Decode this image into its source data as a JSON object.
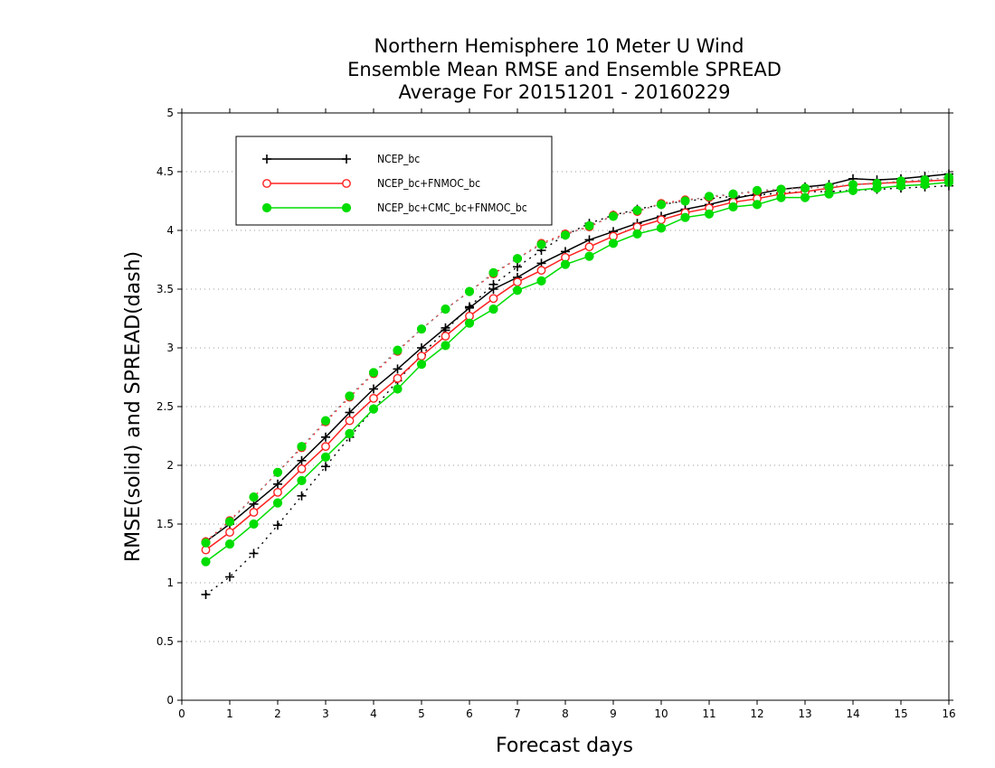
{
  "chart_data": {
    "type": "line",
    "title": [
      "Northern Hemisphere 10 Meter U Wind",
      "Ensemble Mean RMSE and Ensemble SPREAD",
      "Average For 20151201 - 20160229"
    ],
    "xlabel": "Forecast days",
    "ylabel": "RMSE(solid) and SPREAD(dash)",
    "xlim": [
      0,
      16
    ],
    "ylim": [
      0,
      5
    ],
    "xticks": [
      0,
      1,
      2,
      3,
      4,
      5,
      6,
      7,
      8,
      9,
      10,
      11,
      12,
      13,
      14,
      15,
      16
    ],
    "yticks": [
      0,
      0.5,
      1,
      1.5,
      2,
      2.5,
      3,
      3.5,
      4,
      4.5,
      5
    ],
    "grid": "horizontal-dotted",
    "legend_position": "top-left",
    "x": [
      0.5,
      1,
      1.5,
      2,
      2.5,
      3,
      3.5,
      4,
      4.5,
      5,
      5.5,
      6,
      6.5,
      7,
      7.5,
      8,
      8.5,
      9,
      9.5,
      10,
      10.5,
      11,
      11.5,
      12,
      12.5,
      13,
      13.5,
      14,
      14.5,
      15,
      15.5,
      16
    ],
    "series": [
      {
        "name": "NCEP_bc",
        "color": "#000000",
        "marker": "plus",
        "rmse": [
          1.35,
          1.5,
          1.67,
          1.84,
          2.04,
          2.24,
          2.45,
          2.65,
          2.82,
          3.0,
          3.17,
          3.34,
          3.5,
          3.6,
          3.72,
          3.82,
          3.92,
          3.99,
          4.06,
          4.12,
          4.18,
          4.22,
          4.27,
          4.31,
          4.35,
          4.37,
          4.39,
          4.44,
          4.43,
          4.44,
          4.46,
          4.48
        ],
        "spread": [
          0.9,
          1.05,
          1.25,
          1.49,
          1.74,
          1.99,
          2.24,
          2.48,
          2.72,
          2.94,
          3.15,
          3.35,
          3.54,
          3.69,
          3.83,
          3.96,
          4.06,
          4.13,
          4.18,
          4.22,
          4.25,
          4.27,
          4.29,
          4.3,
          4.32,
          4.33,
          4.33,
          4.34,
          4.35,
          4.36,
          4.37,
          4.38
        ]
      },
      {
        "name": "NCEP_bc+FNMOC_bc",
        "color": "#ff2020",
        "marker": "open-circle",
        "rmse": [
          1.28,
          1.43,
          1.6,
          1.77,
          1.97,
          2.16,
          2.38,
          2.57,
          2.74,
          2.93,
          3.1,
          3.27,
          3.42,
          3.56,
          3.66,
          3.77,
          3.86,
          3.95,
          4.03,
          4.09,
          4.15,
          4.19,
          4.24,
          4.27,
          4.31,
          4.33,
          4.36,
          4.39,
          4.4,
          4.41,
          4.42,
          4.43
        ],
        "spread": [
          1.35,
          1.53,
          1.73,
          1.94,
          2.15,
          2.37,
          2.58,
          2.78,
          2.97,
          3.16,
          3.33,
          3.48,
          3.63,
          3.76,
          3.89,
          3.97,
          4.03,
          4.13,
          4.16,
          4.23,
          4.26,
          4.28,
          4.31,
          4.33,
          4.35,
          4.36,
          4.37,
          4.39,
          4.4,
          4.41,
          4.42,
          4.43
        ]
      },
      {
        "name": "NCEP_bc+CMC_bc+FNMOC_bc",
        "color": "#00dd00",
        "marker": "filled-circle",
        "rmse": [
          1.18,
          1.33,
          1.5,
          1.68,
          1.87,
          2.07,
          2.27,
          2.48,
          2.65,
          2.86,
          3.02,
          3.21,
          3.33,
          3.49,
          3.57,
          3.71,
          3.78,
          3.89,
          3.97,
          4.02,
          4.11,
          4.14,
          4.2,
          4.22,
          4.28,
          4.28,
          4.31,
          4.34,
          4.36,
          4.38,
          4.39,
          4.41
        ],
        "spread": [
          1.34,
          1.52,
          1.73,
          1.94,
          2.16,
          2.38,
          2.59,
          2.79,
          2.98,
          3.16,
          3.33,
          3.48,
          3.64,
          3.76,
          3.88,
          3.96,
          4.04,
          4.12,
          4.17,
          4.22,
          4.25,
          4.29,
          4.31,
          4.34,
          4.35,
          4.36,
          4.37,
          4.39,
          4.4,
          4.42,
          4.43,
          4.45
        ]
      }
    ]
  }
}
